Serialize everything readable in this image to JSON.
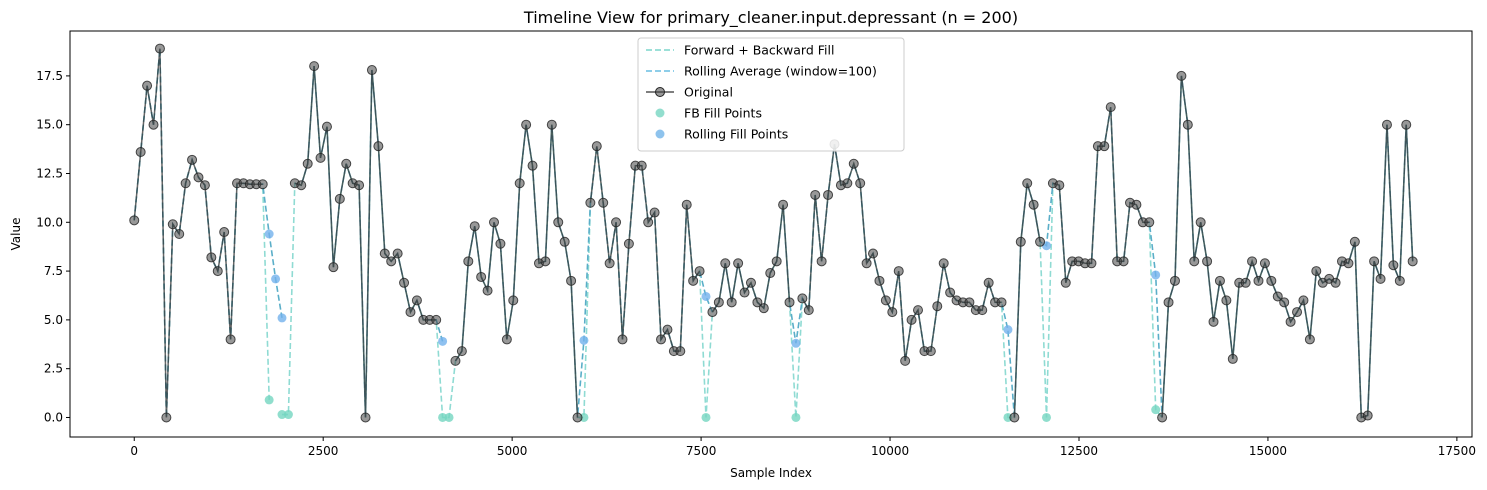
{
  "chart_data": {
    "type": "line",
    "title": "Timeline View for primary_cleaner.input.depressant (n = 200)",
    "xlabel": "Sample Index",
    "ylabel": "Value",
    "xlim": [
      -850,
      17700
    ],
    "ylim": [
      -1.0,
      19.8
    ],
    "xticks": [
      0,
      2500,
      5000,
      7500,
      10000,
      12500,
      15000,
      17500
    ],
    "xtick_labels": [
      "0",
      "2500",
      "5000",
      "7500",
      "10000",
      "12500",
      "15000",
      "17500"
    ],
    "yticks": [
      0.0,
      2.5,
      5.0,
      7.5,
      10.0,
      12.5,
      15.0,
      17.5
    ],
    "ytick_labels": [
      "0.0",
      "2.5",
      "5.0",
      "7.5",
      "10.0",
      "12.5",
      "15.0",
      "17.5"
    ],
    "grid": false,
    "legend_position": "top-center",
    "legend": [
      {
        "label": "Forward + Backward Fill",
        "kind": "dashed-line",
        "color": "#8fdbd3"
      },
      {
        "label": "Rolling Average (window=100)",
        "kind": "dashed-line",
        "color": "#7fc8e6"
      },
      {
        "label": "Original",
        "kind": "line-marker",
        "color": "#555555"
      },
      {
        "label": "FB Fill Points",
        "kind": "marker",
        "color": "#7fd8c6"
      },
      {
        "label": "Rolling Fill Points",
        "kind": "marker",
        "color": "#7ab8ea"
      }
    ],
    "colors": {
      "original": "#333333",
      "fb_line": "#8fdbd3",
      "rolling_line": "#5aaec8",
      "fb_points": "#74d6c0",
      "rolling_points": "#73b2ec"
    },
    "series": [
      {
        "name": "Original",
        "points": [
          [
            0,
            10.1
          ],
          [
            85,
            13.6
          ],
          [
            170,
            17.0
          ],
          [
            255,
            15.0
          ],
          [
            340,
            18.9
          ],
          [
            425,
            0.0
          ],
          [
            510,
            9.9
          ],
          [
            595,
            9.4
          ],
          [
            680,
            12.0
          ],
          [
            765,
            13.2
          ],
          [
            850,
            12.3
          ],
          [
            935,
            11.9
          ],
          [
            1020,
            8.2
          ],
          [
            1105,
            7.5
          ],
          [
            1190,
            9.5
          ],
          [
            1275,
            4.0
          ],
          [
            1360,
            12.0
          ],
          [
            1445,
            12.0
          ],
          [
            1530,
            11.95
          ],
          [
            1615,
            11.95
          ],
          [
            1700,
            11.95
          ],
          [
            1785,
            null
          ],
          [
            1870,
            null
          ],
          [
            1955,
            null
          ],
          [
            2040,
            null
          ],
          [
            2125,
            12.0
          ],
          [
            2210,
            11.9
          ],
          [
            2295,
            13.0
          ],
          [
            2380,
            18.0
          ],
          [
            2465,
            13.3
          ],
          [
            2550,
            14.9
          ],
          [
            2635,
            7.7
          ],
          [
            2720,
            11.2
          ],
          [
            2805,
            13.0
          ],
          [
            2890,
            12.0
          ],
          [
            2975,
            11.9
          ],
          [
            3060,
            0.0
          ],
          [
            3145,
            17.8
          ],
          [
            3230,
            13.9
          ],
          [
            3315,
            8.4
          ],
          [
            3400,
            8.0
          ],
          [
            3485,
            8.4
          ],
          [
            3570,
            6.9
          ],
          [
            3655,
            5.4
          ],
          [
            3740,
            6.0
          ],
          [
            3825,
            5.0
          ],
          [
            3910,
            5.0
          ],
          [
            3995,
            5.0
          ],
          [
            4080,
            null
          ],
          [
            4165,
            null
          ],
          [
            4250,
            2.9
          ],
          [
            4335,
            3.4
          ],
          [
            4420,
            8.0
          ],
          [
            4505,
            9.8
          ],
          [
            4590,
            7.2
          ],
          [
            4675,
            6.5
          ],
          [
            4760,
            10.0
          ],
          [
            4845,
            8.9
          ],
          [
            4930,
            4.0
          ],
          [
            5015,
            6.0
          ],
          [
            5100,
            12.0
          ],
          [
            5185,
            15.0
          ],
          [
            5270,
            12.9
          ],
          [
            5355,
            7.9
          ],
          [
            5440,
            8.0
          ],
          [
            5525,
            15.0
          ],
          [
            5610,
            10.0
          ],
          [
            5695,
            9.0
          ],
          [
            5780,
            7.0
          ],
          [
            5865,
            0.0
          ],
          [
            5950,
            null
          ],
          [
            6035,
            11.0
          ],
          [
            6120,
            13.9
          ],
          [
            6205,
            11.0
          ],
          [
            6290,
            7.9
          ],
          [
            6375,
            10.0
          ],
          [
            6460,
            4.0
          ],
          [
            6545,
            8.9
          ],
          [
            6630,
            12.9
          ],
          [
            6715,
            12.9
          ],
          [
            6800,
            10.0
          ],
          [
            6885,
            10.5
          ],
          [
            6970,
            4.0
          ],
          [
            7055,
            4.5
          ],
          [
            7140,
            3.4
          ],
          [
            7225,
            3.4
          ],
          [
            7310,
            10.9
          ],
          [
            7395,
            7.0
          ],
          [
            7480,
            7.5
          ],
          [
            7565,
            null
          ],
          [
            7650,
            5.4
          ],
          [
            7735,
            5.9
          ],
          [
            7820,
            7.9
          ],
          [
            7905,
            5.9
          ],
          [
            7990,
            7.9
          ],
          [
            8075,
            6.4
          ],
          [
            8160,
            6.9
          ],
          [
            8245,
            5.9
          ],
          [
            8330,
            5.6
          ],
          [
            8415,
            7.4
          ],
          [
            8500,
            8.0
          ],
          [
            8585,
            10.9
          ],
          [
            8670,
            5.9
          ],
          [
            8755,
            null
          ],
          [
            8840,
            6.1
          ],
          [
            8925,
            5.5
          ],
          [
            9010,
            11.4
          ],
          [
            9095,
            8.0
          ],
          [
            9180,
            11.4
          ],
          [
            9265,
            14.0
          ],
          [
            9350,
            11.9
          ],
          [
            9435,
            12.0
          ],
          [
            9520,
            13.0
          ],
          [
            9605,
            12.0
          ],
          [
            9690,
            7.9
          ],
          [
            9775,
            8.4
          ],
          [
            9860,
            7.0
          ],
          [
            9945,
            6.0
          ],
          [
            10030,
            5.4
          ],
          [
            10115,
            7.5
          ],
          [
            10200,
            2.9
          ],
          [
            10285,
            5.0
          ],
          [
            10370,
            5.5
          ],
          [
            10455,
            3.4
          ],
          [
            10540,
            3.4
          ],
          [
            10625,
            5.7
          ],
          [
            10710,
            7.9
          ],
          [
            10795,
            6.4
          ],
          [
            10880,
            6.0
          ],
          [
            10965,
            5.9
          ],
          [
            11050,
            5.9
          ],
          [
            11135,
            5.5
          ],
          [
            11220,
            5.5
          ],
          [
            11305,
            6.9
          ],
          [
            11390,
            5.9
          ],
          [
            11475,
            5.9
          ],
          [
            11560,
            null
          ],
          [
            11645,
            0.0
          ],
          [
            11730,
            9.0
          ],
          [
            11815,
            12.0
          ],
          [
            11900,
            10.9
          ],
          [
            11985,
            9.0
          ],
          [
            12070,
            null
          ],
          [
            12155,
            12.0
          ],
          [
            12240,
            11.9
          ],
          [
            12325,
            6.9
          ],
          [
            12410,
            8.0
          ],
          [
            12495,
            8.0
          ],
          [
            12580,
            7.9
          ],
          [
            12665,
            7.9
          ],
          [
            12750,
            13.9
          ],
          [
            12835,
            13.9
          ],
          [
            12920,
            15.9
          ],
          [
            13005,
            8.0
          ],
          [
            13090,
            8.0
          ],
          [
            13175,
            11.0
          ],
          [
            13260,
            10.9
          ],
          [
            13345,
            10.0
          ],
          [
            13430,
            10.0
          ],
          [
            13515,
            null
          ],
          [
            13600,
            0.0
          ],
          [
            13685,
            5.9
          ],
          [
            13770,
            7.0
          ],
          [
            13855,
            17.5
          ],
          [
            13940,
            15.0
          ],
          [
            14025,
            8.0
          ],
          [
            14110,
            10.0
          ],
          [
            14195,
            8.0
          ],
          [
            14280,
            4.9
          ],
          [
            14365,
            7.0
          ],
          [
            14450,
            6.0
          ],
          [
            14535,
            3.0
          ],
          [
            14620,
            6.9
          ],
          [
            14705,
            6.9
          ],
          [
            14790,
            8.0
          ],
          [
            14875,
            7.0
          ],
          [
            14960,
            7.9
          ],
          [
            15045,
            7.0
          ],
          [
            15130,
            6.2
          ],
          [
            15215,
            5.9
          ],
          [
            15300,
            4.9
          ],
          [
            15385,
            5.4
          ],
          [
            15470,
            6.0
          ],
          [
            15555,
            4.0
          ],
          [
            15640,
            7.5
          ],
          [
            15725,
            6.9
          ],
          [
            15810,
            7.1
          ],
          [
            15895,
            6.9
          ],
          [
            15980,
            8.0
          ],
          [
            16065,
            7.9
          ],
          [
            16150,
            9.0
          ],
          [
            16235,
            0.0
          ],
          [
            16320,
            0.1
          ],
          [
            16405,
            8.0
          ],
          [
            16490,
            7.1
          ],
          [
            16575,
            15.0
          ],
          [
            16660,
            7.8
          ],
          [
            16745,
            7.0
          ],
          [
            16830,
            15.0
          ],
          [
            16915,
            8.0
          ]
        ]
      },
      {
        "name": "FB Fill Points",
        "points": [
          [
            1785,
            0.9
          ],
          [
            1955,
            0.15
          ],
          [
            2040,
            0.15
          ],
          [
            4080,
            0.0
          ],
          [
            4165,
            0.0
          ],
          [
            5950,
            0.0
          ],
          [
            7565,
            0.0
          ],
          [
            8755,
            0.0
          ],
          [
            11560,
            0.0
          ],
          [
            12070,
            0.0
          ],
          [
            13515,
            0.4
          ]
        ]
      },
      {
        "name": "Rolling Fill Points",
        "points": [
          [
            1785,
            9.4
          ],
          [
            1870,
            7.1
          ],
          [
            1955,
            5.1
          ],
          [
            4080,
            3.9
          ],
          [
            5950,
            3.95
          ],
          [
            7565,
            6.2
          ],
          [
            8755,
            3.8
          ],
          [
            11560,
            4.5
          ],
          [
            12070,
            8.8
          ],
          [
            13515,
            7.3
          ]
        ]
      }
    ]
  }
}
